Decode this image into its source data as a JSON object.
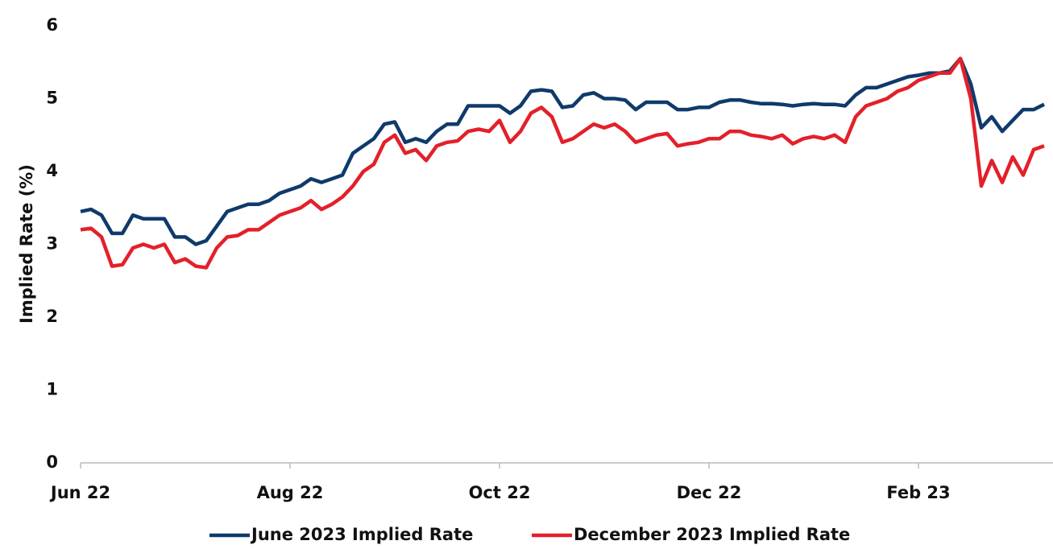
{
  "chart_data": {
    "type": "line",
    "ylabel": "Implied Rate (%)",
    "categories": [
      "Jun 22",
      null,
      null,
      null,
      null,
      null,
      null,
      null,
      null,
      null,
      null,
      null,
      null,
      null,
      null,
      null,
      null,
      null,
      null,
      null,
      "Aug 22",
      null,
      null,
      null,
      null,
      null,
      null,
      null,
      null,
      null,
      null,
      null,
      null,
      null,
      null,
      null,
      null,
      null,
      null,
      null,
      "Oct 22",
      null,
      null,
      null,
      null,
      null,
      null,
      null,
      null,
      null,
      null,
      null,
      null,
      null,
      null,
      null,
      null,
      null,
      null,
      null,
      "Dec 22",
      null,
      null,
      null,
      null,
      null,
      null,
      null,
      null,
      null,
      null,
      null,
      null,
      null,
      null,
      null,
      null,
      null,
      null,
      null,
      "Feb 23",
      null,
      null,
      null,
      null,
      null,
      null,
      null,
      null,
      null,
      null,
      null,
      null
    ],
    "series": [
      {
        "name": "June 2023 Implied Rate",
        "color": "#0f3a6b",
        "values": [
          3.45,
          3.48,
          3.4,
          3.15,
          3.15,
          3.4,
          3.35,
          3.35,
          3.35,
          3.1,
          3.1,
          3.0,
          3.05,
          3.25,
          3.45,
          3.5,
          3.55,
          3.55,
          3.6,
          3.7,
          3.75,
          3.8,
          3.9,
          3.85,
          3.9,
          3.95,
          4.25,
          4.35,
          4.45,
          4.65,
          4.68,
          4.4,
          4.45,
          4.4,
          4.55,
          4.65,
          4.65,
          4.9,
          4.9,
          4.9,
          4.9,
          4.8,
          4.9,
          5.1,
          5.12,
          5.1,
          4.88,
          4.9,
          5.05,
          5.08,
          5.0,
          5.0,
          4.98,
          4.85,
          4.95,
          4.95,
          4.95,
          4.85,
          4.85,
          4.88,
          4.88,
          4.95,
          4.98,
          4.98,
          4.95,
          4.93,
          4.93,
          4.92,
          4.9,
          4.92,
          4.93,
          4.92,
          4.92,
          4.9,
          5.05,
          5.15,
          5.15,
          5.2,
          5.25,
          5.3,
          5.32,
          5.35,
          5.35,
          5.38,
          5.55,
          5.2,
          4.6,
          4.75,
          4.55,
          4.7,
          4.85,
          4.85,
          4.92
        ]
      },
      {
        "name": "December 2023 Implied Rate",
        "color": "#e3202a",
        "values": [
          3.2,
          3.22,
          3.1,
          2.7,
          2.72,
          2.95,
          3.0,
          2.95,
          3.0,
          2.75,
          2.8,
          2.7,
          2.68,
          2.95,
          3.1,
          3.12,
          3.2,
          3.2,
          3.3,
          3.4,
          3.45,
          3.5,
          3.6,
          3.48,
          3.55,
          3.65,
          3.8,
          4.0,
          4.1,
          4.4,
          4.5,
          4.25,
          4.3,
          4.15,
          4.35,
          4.4,
          4.42,
          4.55,
          4.58,
          4.55,
          4.7,
          4.4,
          4.55,
          4.8,
          4.88,
          4.75,
          4.4,
          4.45,
          4.55,
          4.65,
          4.6,
          4.65,
          4.55,
          4.4,
          4.45,
          4.5,
          4.52,
          4.35,
          4.38,
          4.4,
          4.45,
          4.45,
          4.55,
          4.55,
          4.5,
          4.48,
          4.45,
          4.5,
          4.38,
          4.45,
          4.48,
          4.45,
          4.5,
          4.4,
          4.75,
          4.9,
          4.95,
          5.0,
          5.1,
          5.15,
          5.25,
          5.3,
          5.35,
          5.35,
          5.55,
          5.0,
          3.8,
          4.15,
          3.85,
          4.2,
          3.95,
          4.3,
          4.35
        ]
      }
    ],
    "ylim": [
      0,
      6
    ],
    "yticks": [
      0,
      1,
      2,
      3,
      4,
      5,
      6
    ],
    "grid": false,
    "legend": "bottom"
  }
}
